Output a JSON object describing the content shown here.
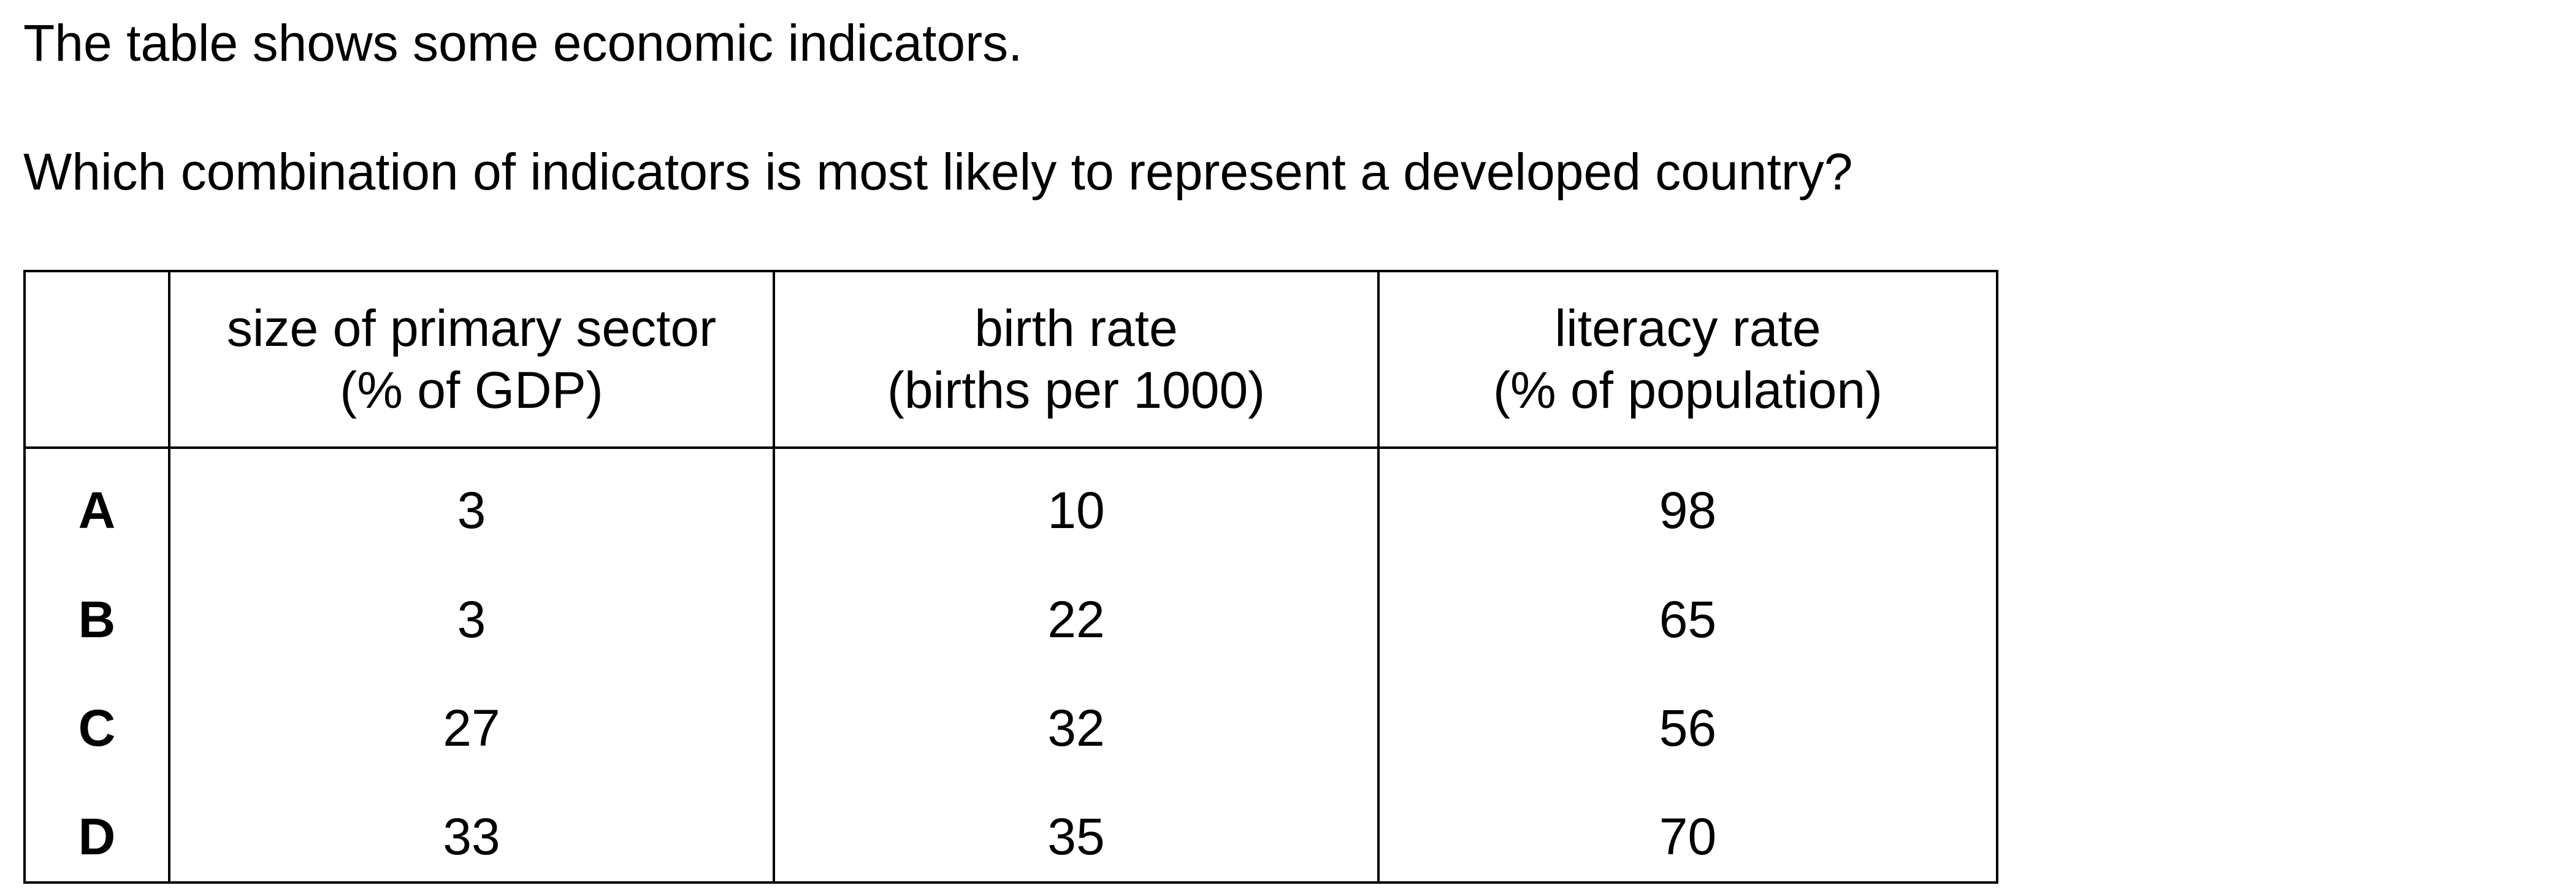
{
  "intro": "The table shows some economic indicators.",
  "question": "Which combination of indicators is most likely to represent a developed country?",
  "table": {
    "headers": [
      {
        "line1": "size of primary sector",
        "line2": "(% of GDP)"
      },
      {
        "line1": "birth rate",
        "line2": "(births per 1000)"
      },
      {
        "line1": "literacy rate",
        "line2": "(% of population)"
      }
    ],
    "rows": [
      {
        "label": "A",
        "values": [
          "3",
          "10",
          "98"
        ]
      },
      {
        "label": "B",
        "values": [
          "3",
          "22",
          "65"
        ]
      },
      {
        "label": "C",
        "values": [
          "27",
          "32",
          "56"
        ]
      },
      {
        "label": "D",
        "values": [
          "33",
          "35",
          "70"
        ]
      }
    ]
  }
}
